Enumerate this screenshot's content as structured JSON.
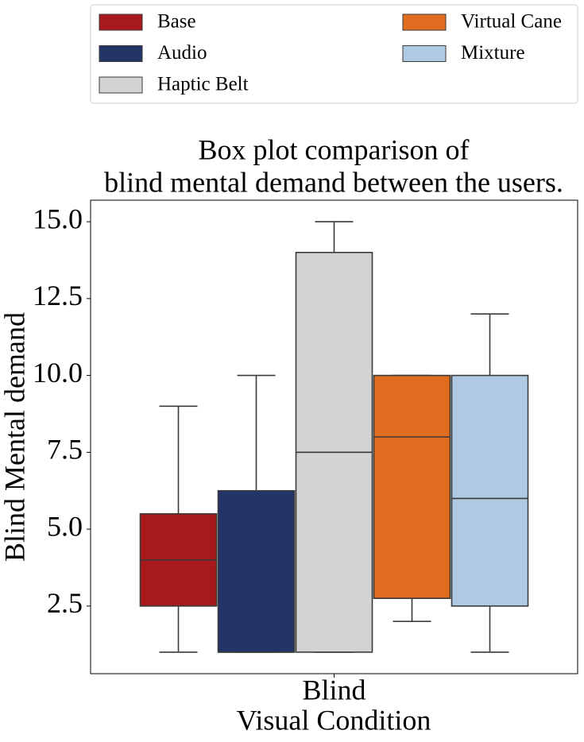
{
  "chart_data": {
    "type": "box",
    "title": [
      "Box plot comparison of",
      "blind mental demand between the users."
    ],
    "xlabel": "Visual Condition",
    "ylabel": "Blind Mental demand",
    "categories": [
      "Blind"
    ],
    "ylim": [
      0.3,
      15.7
    ],
    "yticks": [
      2.5,
      {
        "value": 5,
        "label": "5.0"
      },
      7.5,
      {
        "value": 10,
        "label": "10.0"
      },
      12.5,
      {
        "value": 15,
        "label": "15.0"
      }
    ],
    "series": [
      {
        "name": "Base",
        "color": "#a8191b",
        "min": 1,
        "q1": 2.5,
        "median": 4,
        "q3": 5.5,
        "max": 9
      },
      {
        "name": "Audio",
        "color": "#233567",
        "min": 1,
        "q1": 1,
        "median": 1,
        "q3": 6.25,
        "max": 10
      },
      {
        "name": "Haptic Belt",
        "color": "#d3d3d3",
        "min": 1,
        "q1": 1,
        "median": 7.5,
        "q3": 14,
        "max": 15
      },
      {
        "name": "Virtual Cane",
        "color": "#e06c1f",
        "min": 2,
        "q1": 2.75,
        "median": 8,
        "q3": 10,
        "max": 10
      },
      {
        "name": "Mixture",
        "color": "#b0c9e2",
        "min": 1,
        "q1": 2.5,
        "median": 6,
        "q3": 10,
        "max": 12
      }
    ]
  }
}
